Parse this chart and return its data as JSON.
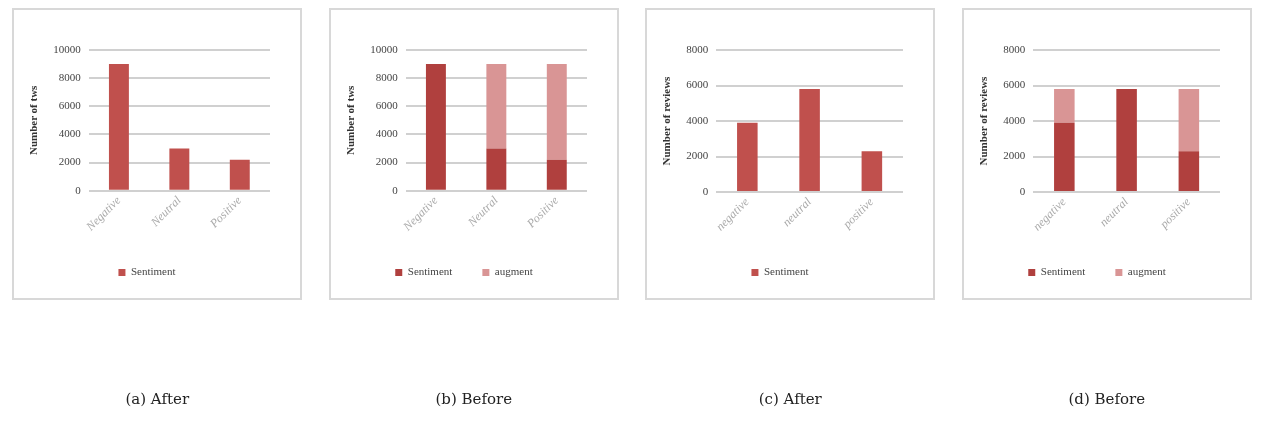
{
  "chart_data": [
    {
      "type": "bar",
      "categories": [
        "Negative",
        "Neutral",
        "Positive"
      ],
      "ylabel": "Number of tws",
      "ylim": [
        0,
        10000
      ],
      "yticks": [
        0,
        2000,
        4000,
        6000,
        8000,
        10000
      ],
      "grid": "y",
      "legend": "bottom",
      "annotations": [
        "(a) After"
      ],
      "series": [
        {
          "name": "Sentiment",
          "color": "#c0504d",
          "values": [
            9000,
            3000,
            2200
          ]
        }
      ]
    },
    {
      "type": "bar",
      "categories": [
        "Negative",
        "Neutral",
        "Positive"
      ],
      "ylabel": "Number of tws",
      "ylim": [
        0,
        10000
      ],
      "yticks": [
        0,
        2000,
        4000,
        6000,
        8000,
        10000
      ],
      "grid": "y",
      "legend": "bottom",
      "stacked": true,
      "annotations": [
        "(b) Before"
      ],
      "series": [
        {
          "name": "Sentiment",
          "color": "#b0403e",
          "values": [
            9000,
            3000,
            2200
          ]
        },
        {
          "name": "augment",
          "color": "#d99595",
          "values": [
            0,
            6000,
            6800
          ]
        }
      ]
    },
    {
      "type": "bar",
      "categories": [
        "negative",
        "neutral",
        "positive"
      ],
      "ylabel": "Number of reviews",
      "ylim": [
        0,
        8000
      ],
      "yticks": [
        0,
        2000,
        4000,
        6000,
        8000
      ],
      "grid": "y",
      "legend": "bottom",
      "annotations": [
        "(c) After"
      ],
      "series": [
        {
          "name": "Sentiment",
          "color": "#c0504d",
          "values": [
            3900,
            5800,
            2300
          ]
        }
      ]
    },
    {
      "type": "bar",
      "categories": [
        "negative",
        "neutral",
        "positive"
      ],
      "ylabel": "Number of reviews",
      "ylim": [
        0,
        8000
      ],
      "yticks": [
        0,
        2000,
        4000,
        6000,
        8000
      ],
      "grid": "y",
      "legend": "bottom",
      "stacked": true,
      "annotations": [
        "(d) Before"
      ],
      "series": [
        {
          "name": "Sentiment",
          "color": "#b0403e",
          "values": [
            3900,
            5800,
            2300
          ]
        },
        {
          "name": "augment",
          "color": "#d99595",
          "values": [
            1900,
            0,
            3500
          ]
        }
      ]
    }
  ]
}
